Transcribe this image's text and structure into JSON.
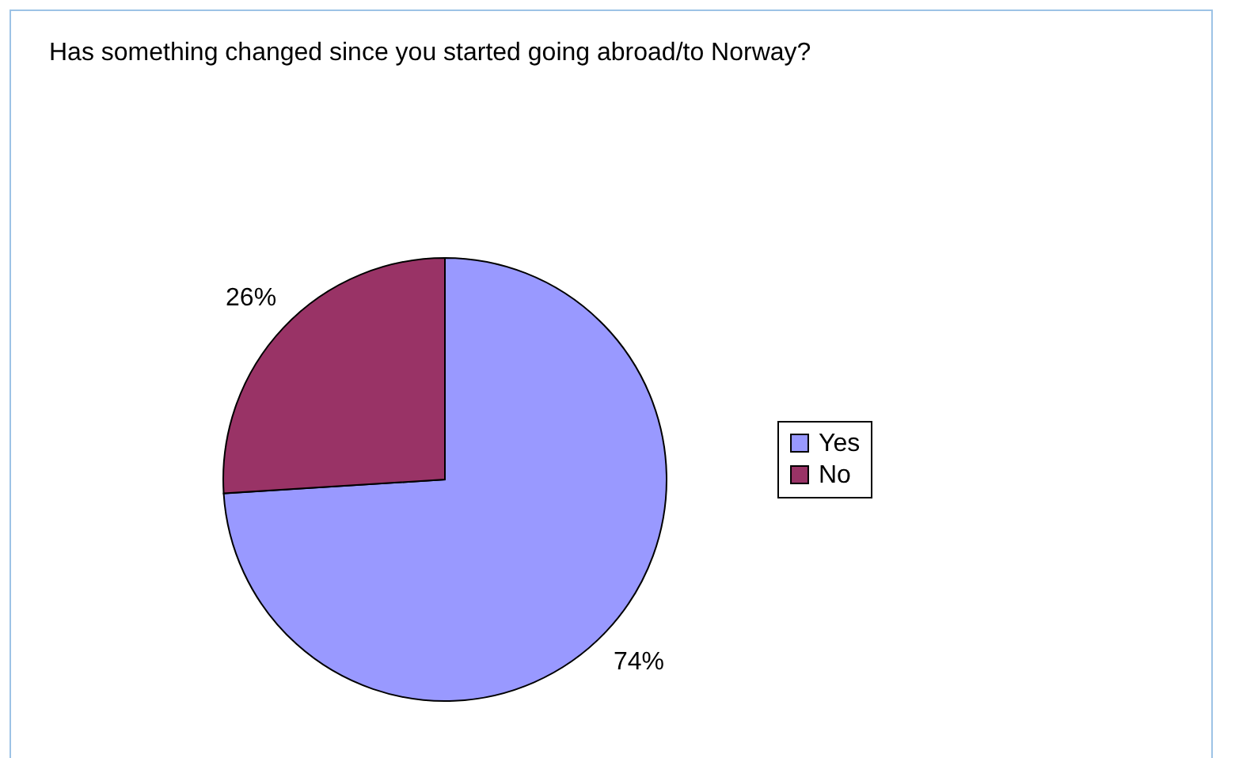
{
  "chart_data": {
    "type": "pie",
    "title": "Has something changed since you started going abroad/to Norway?",
    "categories": [
      "Yes",
      "No"
    ],
    "values": [
      74,
      26
    ],
    "colors": [
      "#9999ff",
      "#993366"
    ],
    "value_labels": [
      "74%",
      "26%"
    ],
    "legend": "right"
  }
}
